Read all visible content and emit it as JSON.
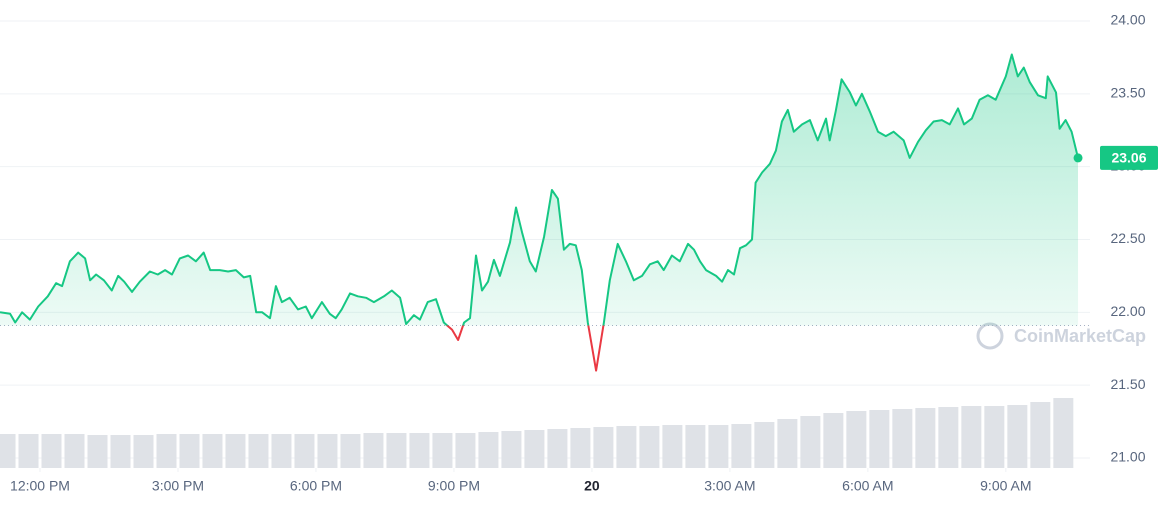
{
  "chart_data": {
    "type": "line",
    "watermark": "CoinMarketCap",
    "x": [
      11.13,
      11.35,
      11.46,
      11.61,
      11.78,
      11.96,
      12.17,
      12.35,
      12.48,
      12.65,
      12.83,
      12.98,
      13.09,
      13.22,
      13.39,
      13.56,
      13.7,
      13.83,
      14.0,
      14.17,
      14.39,
      14.56,
      14.72,
      14.87,
      15.04,
      15.22,
      15.39,
      15.56,
      15.7,
      15.91,
      16.09,
      16.26,
      16.43,
      16.57,
      16.7,
      16.83,
      17.0,
      17.13,
      17.26,
      17.43,
      17.61,
      17.78,
      17.91,
      18.13,
      18.3,
      18.43,
      18.56,
      18.74,
      18.91,
      19.09,
      19.26,
      19.48,
      19.65,
      19.83,
      19.96,
      20.13,
      20.26,
      20.43,
      20.61,
      20.78,
      20.96,
      21.09,
      21.22,
      21.35,
      21.48,
      21.61,
      21.74,
      21.87,
      22.0,
      22.22,
      22.35,
      22.48,
      22.65,
      22.78,
      22.96,
      23.13,
      23.26,
      23.39,
      23.52,
      23.65,
      23.78,
      23.91,
      24.09,
      24.26,
      24.39,
      24.56,
      24.74,
      24.91,
      25.09,
      25.26,
      25.43,
      25.56,
      25.74,
      25.91,
      26.09,
      26.22,
      26.35,
      26.48,
      26.7,
      26.83,
      26.96,
      27.09,
      27.22,
      27.35,
      27.48,
      27.56,
      27.7,
      27.87,
      28.0,
      28.13,
      28.26,
      28.39,
      28.57,
      28.74,
      28.91,
      29.09,
      29.17,
      29.3,
      29.43,
      29.61,
      29.74,
      29.87,
      30.04,
      30.22,
      30.39,
      30.56,
      30.78,
      30.91,
      31.09,
      31.26,
      31.43,
      31.61,
      31.78,
      31.96,
      32.09,
      32.26,
      32.43,
      32.61,
      32.78,
      33.0,
      33.13,
      33.26,
      33.39,
      33.52,
      33.7,
      33.87,
      33.91,
      34.09,
      34.17,
      34.3,
      34.43,
      34.57
    ],
    "series": [
      {
        "color": "#16c784",
        "below_color": "#ea3943",
        "values": [
          22.0,
          21.99,
          21.93,
          22.0,
          21.95,
          22.04,
          22.11,
          22.2,
          22.18,
          22.35,
          22.41,
          22.37,
          22.22,
          22.26,
          22.22,
          22.15,
          22.25,
          22.21,
          22.14,
          22.21,
          22.28,
          22.26,
          22.29,
          22.26,
          22.37,
          22.39,
          22.35,
          22.41,
          22.29,
          22.29,
          22.28,
          22.29,
          22.24,
          22.25,
          22.0,
          22.0,
          21.96,
          22.18,
          22.07,
          22.1,
          22.02,
          22.04,
          21.96,
          22.07,
          21.99,
          21.96,
          22.02,
          22.13,
          22.11,
          22.1,
          22.07,
          22.11,
          22.15,
          22.1,
          21.92,
          21.98,
          21.95,
          22.07,
          22.09,
          21.93,
          21.88,
          21.81,
          21.93,
          21.96,
          22.39,
          22.15,
          22.21,
          22.36,
          22.25,
          22.48,
          22.72,
          22.55,
          22.35,
          22.28,
          22.52,
          22.84,
          22.78,
          22.43,
          22.47,
          22.46,
          22.29,
          21.93,
          21.6,
          21.93,
          22.22,
          22.47,
          22.35,
          22.22,
          22.25,
          22.33,
          22.35,
          22.29,
          22.39,
          22.35,
          22.47,
          22.43,
          22.35,
          22.29,
          22.25,
          22.21,
          22.29,
          22.26,
          22.44,
          22.46,
          22.5,
          22.89,
          22.96,
          23.02,
          23.11,
          23.31,
          23.39,
          23.24,
          23.29,
          23.32,
          23.18,
          23.33,
          23.18,
          23.38,
          23.6,
          23.51,
          23.42,
          23.5,
          23.38,
          23.24,
          23.21,
          23.24,
          23.18,
          23.06,
          23.17,
          23.25,
          23.31,
          23.32,
          23.29,
          23.4,
          23.29,
          23.33,
          23.46,
          23.49,
          23.46,
          23.62,
          23.77,
          23.62,
          23.68,
          23.58,
          23.49,
          23.47,
          23.62,
          23.51,
          23.26,
          23.32,
          23.24,
          23.06
        ]
      }
    ],
    "reference_value": 21.91,
    "volume": {
      "color": "#dfe2e7",
      "lim": [
        0,
        100
      ],
      "x": [
        11.25,
        11.75,
        12.25,
        12.75,
        13.25,
        13.75,
        14.25,
        14.75,
        15.25,
        15.75,
        16.25,
        16.75,
        17.25,
        17.75,
        18.25,
        18.75,
        19.25,
        19.75,
        20.25,
        20.75,
        21.25,
        21.75,
        22.25,
        22.75,
        23.25,
        23.75,
        24.25,
        24.75,
        25.25,
        25.75,
        26.25,
        26.75,
        27.25,
        27.75,
        28.25,
        28.75,
        29.25,
        29.75,
        30.25,
        30.75,
        31.25,
        31.75,
        32.25,
        32.75,
        33.25,
        33.75,
        34.25
      ],
      "values": [
        34,
        34,
        34,
        34,
        33,
        33,
        33,
        34,
        34,
        34,
        34,
        34,
        34,
        34,
        34,
        34,
        35,
        35,
        35,
        35,
        35,
        36,
        37,
        38,
        39,
        40,
        41,
        42,
        42,
        43,
        43,
        43,
        44,
        46,
        49,
        52,
        55,
        57,
        58,
        59,
        60,
        61,
        62,
        62,
        63,
        66,
        70
      ]
    },
    "xlim": [
      11.13,
      34.83
    ],
    "xticks": [
      {
        "value": 12,
        "label": "12:00 PM"
      },
      {
        "value": 15,
        "label": "3:00 PM"
      },
      {
        "value": 18,
        "label": "6:00 PM"
      },
      {
        "value": 21,
        "label": "9:00 PM"
      },
      {
        "value": 24,
        "label": "20"
      },
      {
        "value": 27,
        "label": "3:00 AM"
      },
      {
        "value": 30,
        "label": "6:00 AM"
      },
      {
        "value": 33,
        "label": "9:00 AM"
      }
    ],
    "ylim": [
      21,
      24
    ],
    "yticks": [
      {
        "value": 21,
        "label": "21.00"
      },
      {
        "value": 21.5,
        "label": "21.50"
      },
      {
        "value": 22,
        "label": "22.00"
      },
      {
        "value": 22.5,
        "label": "22.50"
      },
      {
        "value": 23,
        "label": "23.00"
      },
      {
        "value": 23.5,
        "label": "23.50"
      },
      {
        "value": 24,
        "label": "24.00"
      }
    ],
    "grid": true
  }
}
